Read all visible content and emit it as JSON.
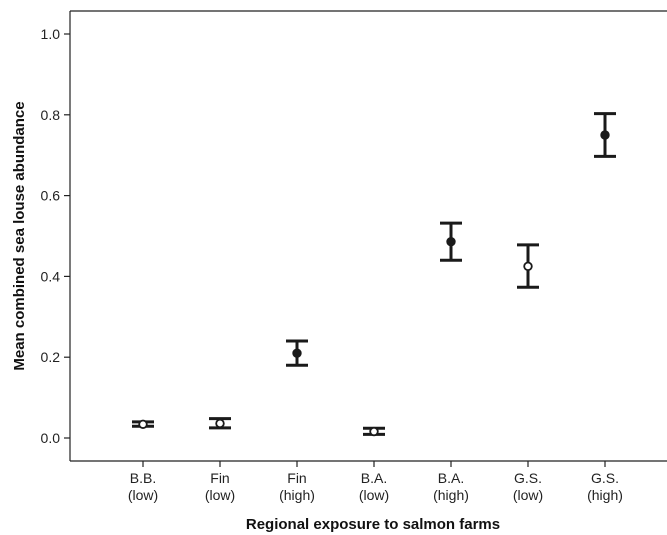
{
  "chart_data": {
    "type": "scatter",
    "subtype": "error-bar",
    "title": "",
    "xlabel": "Regional exposure to salmon farms",
    "ylabel": "Mean combined sea louse abundance",
    "ylim": [
      0.0,
      1.0
    ],
    "yticks": [
      "0.0",
      "0.2",
      "0.4",
      "0.6",
      "0.8",
      "1.0"
    ],
    "ytick_values": [
      0.0,
      0.2,
      0.4,
      0.6,
      0.8,
      1.0
    ],
    "grid": false,
    "categories": [
      {
        "line1": "B.B.",
        "line2": "(low)"
      },
      {
        "line1": "Fin",
        "line2": "(low)"
      },
      {
        "line1": "Fin",
        "line2": "(high)"
      },
      {
        "line1": "B.A.",
        "line2": "(low)"
      },
      {
        "line1": "B.A.",
        "line2": "(high)"
      },
      {
        "line1": "G.S.",
        "line2": "(low)"
      },
      {
        "line1": "G.S.",
        "line2": "(high)"
      }
    ],
    "points": [
      {
        "mean": 0.034,
        "lower": 0.029,
        "upper": 0.04,
        "marker": "open"
      },
      {
        "mean": 0.036,
        "lower": 0.025,
        "upper": 0.048,
        "marker": "open"
      },
      {
        "mean": 0.21,
        "lower": 0.18,
        "upper": 0.24,
        "marker": "filled"
      },
      {
        "mean": 0.016,
        "lower": 0.009,
        "upper": 0.024,
        "marker": "open"
      },
      {
        "mean": 0.486,
        "lower": 0.44,
        "upper": 0.532,
        "marker": "filled"
      },
      {
        "mean": 0.425,
        "lower": 0.373,
        "upper": 0.478,
        "marker": "open"
      },
      {
        "mean": 0.75,
        "lower": 0.697,
        "upper": 0.803,
        "marker": "filled"
      }
    ],
    "colors": {
      "line": "#1a1a1a",
      "filled_marker": "#1a1a1a",
      "open_marker": "#ffffff"
    }
  }
}
